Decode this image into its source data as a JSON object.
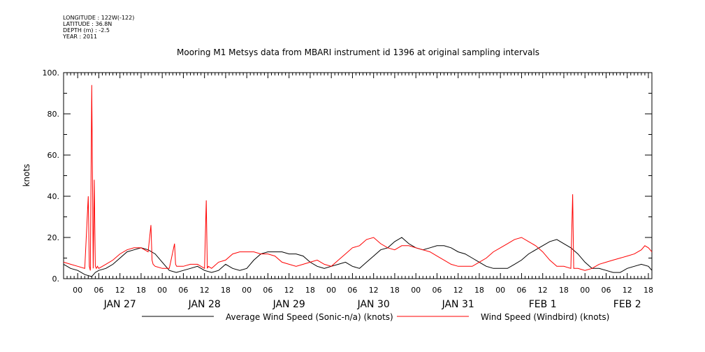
{
  "metadata": [
    "LONGITUDE : 122W(-122)",
    "LATITUDE : 36.8N",
    "DEPTH (m) : -2.5",
    "YEAR : 2011"
  ],
  "chart_data": {
    "type": "line",
    "title": "Mooring M1 Metsys data from MBARI instrument id 1396 at original sampling intervals",
    "ylabel": "knots",
    "xlabel": "",
    "ylim": [
      0,
      100
    ],
    "y_ticks": [
      "0.",
      "20.",
      "40.",
      "60.",
      "80.",
      "100."
    ],
    "x_hour_ticks": [
      "00",
      "06",
      "12",
      "18",
      "00",
      "06",
      "12",
      "18",
      "00",
      "06",
      "12",
      "18",
      "00",
      "06",
      "12",
      "18",
      "00",
      "06",
      "12",
      "18",
      "00",
      "06",
      "12",
      "18",
      "00",
      "06",
      "12",
      "18"
    ],
    "x_day_labels": [
      "JAN 27",
      "JAN 28",
      "JAN 29",
      "JAN 30",
      "JAN 31",
      "FEB  1",
      "FEB  2"
    ],
    "x_unit": "hours since 2011-01-26 20:00",
    "xlim": [
      0,
      167
    ],
    "grid": false,
    "legend_position": "bottom",
    "series": [
      {
        "name": "Average Wind Speed (Sonic-n/a) (knots)",
        "color": "#000000",
        "x": [
          0,
          2,
          4,
          6,
          8,
          9,
          10,
          12,
          14,
          16,
          18,
          20,
          22,
          24,
          26,
          28,
          30,
          32,
          34,
          36,
          38,
          40,
          42,
          44,
          46,
          48,
          50,
          52,
          54,
          56,
          58,
          60,
          62,
          64,
          66,
          68,
          70,
          72,
          74,
          76,
          78,
          80,
          82,
          84,
          86,
          88,
          90,
          92,
          94,
          96,
          98,
          100,
          102,
          104,
          106,
          108,
          110,
          112,
          114,
          116,
          118,
          120,
          122,
          124,
          126,
          128,
          130,
          132,
          134,
          136,
          138,
          140,
          142,
          144,
          146,
          148,
          150,
          152,
          154,
          156,
          158,
          160,
          162,
          164,
          166,
          167
        ],
        "values": [
          7,
          5,
          4,
          2,
          1,
          3,
          4,
          5,
          7,
          10,
          13,
          14,
          15,
          14,
          12,
          8,
          4,
          3,
          4,
          5,
          6,
          4,
          3,
          4,
          7,
          5,
          4,
          5,
          9,
          12,
          13,
          13,
          13,
          12,
          12,
          11,
          8,
          6,
          5,
          6,
          7,
          8,
          6,
          5,
          8,
          11,
          14,
          15,
          18,
          20,
          17,
          15,
          14,
          15,
          16,
          16,
          15,
          13,
          12,
          10,
          8,
          6,
          5,
          5,
          5,
          7,
          9,
          12,
          14,
          16,
          18,
          19,
          17,
          15,
          12,
          8,
          5,
          5,
          4,
          3,
          3,
          5,
          6,
          7,
          6,
          4
        ]
      },
      {
        "name": "Wind Speed (Windbird) (knots)",
        "color": "#ff0000",
        "x": [
          0,
          2,
          4,
          6,
          7.0,
          7.3,
          7.6,
          8,
          8.4,
          8.7,
          9.0,
          9.3,
          9.6,
          10,
          12,
          14,
          16,
          18,
          20,
          22,
          24,
          24.8,
          25.1,
          25.4,
          26,
          28,
          30,
          31.5,
          31.8,
          32.1,
          34,
          36,
          38,
          40,
          40.5,
          40.8,
          41.1,
          42,
          44,
          46,
          48,
          50,
          52,
          54,
          56,
          58,
          60,
          62,
          64,
          66,
          68,
          70,
          72,
          74,
          76,
          78,
          80,
          82,
          84,
          86,
          88,
          90,
          92,
          94,
          96,
          98,
          100,
          102,
          104,
          106,
          108,
          110,
          112,
          114,
          116,
          118,
          120,
          122,
          124,
          126,
          128,
          130,
          132,
          134,
          136,
          138,
          140,
          142,
          144,
          144.5,
          144.8,
          145.1,
          146,
          148,
          150,
          152,
          154,
          156,
          158,
          160,
          162,
          164,
          165,
          166,
          167
        ],
        "values": [
          8,
          7,
          6,
          5,
          40,
          6,
          4,
          94,
          5,
          48,
          6,
          5,
          6,
          5,
          7,
          9,
          12,
          14,
          15,
          15,
          13,
          26,
          9,
          7,
          6,
          5,
          5,
          17,
          7,
          6,
          6,
          7,
          7,
          5,
          38,
          5,
          6,
          5,
          8,
          9,
          12,
          13,
          13,
          13,
          12,
          12,
          11,
          8,
          7,
          6,
          7,
          8,
          9,
          7,
          6,
          9,
          12,
          15,
          16,
          19,
          20,
          17,
          15,
          14,
          16,
          16,
          15,
          14,
          13,
          11,
          9,
          7,
          6,
          6,
          6,
          8,
          10,
          13,
          15,
          17,
          19,
          20,
          18,
          16,
          13,
          9,
          6,
          6,
          5,
          41,
          5,
          5,
          5,
          4,
          5,
          7,
          8,
          9,
          10,
          11,
          12,
          14,
          16,
          15,
          13
        ]
      }
    ]
  }
}
